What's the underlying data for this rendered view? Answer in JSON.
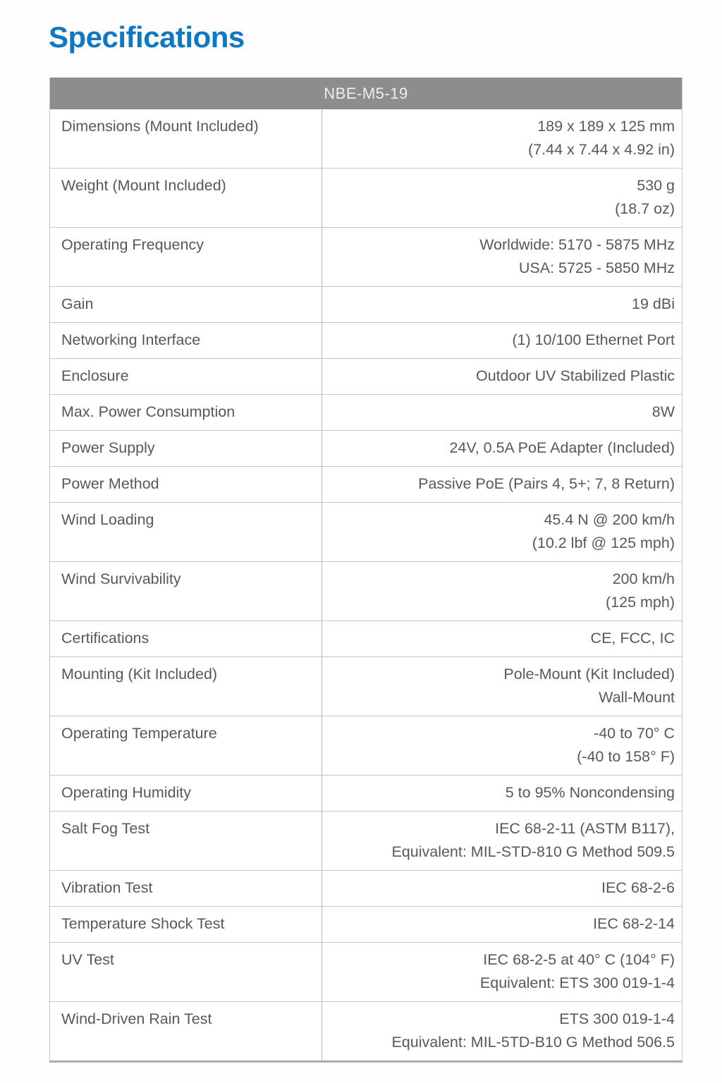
{
  "page": {
    "title": "Specifications"
  },
  "table": {
    "header": "NBE-M5-19",
    "rows": [
      {
        "label": "Dimensions (Mount Included)",
        "values": [
          "189 x 189 x 125 mm",
          "(7.44 x 7.44 x 4.92 in)"
        ]
      },
      {
        "label": "Weight (Mount Included)",
        "values": [
          "530 g",
          "(18.7 oz)"
        ]
      },
      {
        "label": "Operating Frequency",
        "values": [
          "Worldwide: 5170 - 5875 MHz",
          "USA: 5725 - 5850 MHz"
        ]
      },
      {
        "label": "Gain",
        "values": [
          "19 dBi"
        ]
      },
      {
        "label": "Networking Interface",
        "values": [
          "(1) 10/100 Ethernet Port"
        ]
      },
      {
        "label": "Enclosure",
        "values": [
          "Outdoor UV Stabilized Plastic"
        ]
      },
      {
        "label": "Max. Power Consumption",
        "values": [
          "8W"
        ]
      },
      {
        "label": "Power Supply",
        "values": [
          "24V, 0.5A PoE Adapter (Included)"
        ]
      },
      {
        "label": "Power Method",
        "values": [
          "Passive PoE (Pairs 4, 5+; 7, 8 Return)"
        ]
      },
      {
        "label": "Wind Loading",
        "values": [
          "45.4 N @ 200 km/h",
          "(10.2 lbf @ 125 mph)"
        ]
      },
      {
        "label": "Wind Survivability",
        "values": [
          "200 km/h",
          "(125 mph)"
        ]
      },
      {
        "label": "Certifications",
        "values": [
          "CE, FCC, IC"
        ]
      },
      {
        "label": "Mounting (Kit Included)",
        "values": [
          "Pole-Mount (Kit Included)",
          "Wall-Mount"
        ]
      },
      {
        "label": "Operating Temperature",
        "values": [
          "-40 to 70° C",
          "(-40 to 158° F)"
        ]
      },
      {
        "label": "Operating Humidity",
        "values": [
          "5 to 95% Noncondensing"
        ]
      },
      {
        "label": "Salt Fog Test",
        "values": [
          "IEC 68-2-11 (ASTM B117),",
          "Equivalent: MIL-STD-810 G Method 509.5"
        ]
      },
      {
        "label": "Vibration Test",
        "values": [
          "IEC 68-2-6"
        ]
      },
      {
        "label": "Temperature Shock Test",
        "values": [
          "IEC 68-2-14"
        ]
      },
      {
        "label": "UV Test",
        "values": [
          "IEC 68-2-5 at 40° C (104° F)",
          "Equivalent: ETS 300 019-1-4"
        ]
      },
      {
        "label": "Wind-Driven Rain Test",
        "values": [
          "ETS 300 019-1-4",
          "Equivalent: MIL-5TD-B10 G Method 506.5"
        ]
      }
    ]
  },
  "colors": {
    "accent": "#0d78c4",
    "header_bg": "#8d8d8f",
    "header_text": "#eeeeef",
    "text": "#545861",
    "border": "#c6c6c8",
    "divider": "#b8b8ba",
    "table_bottom": "#a9a9ab",
    "page_bg": "#fefefe"
  }
}
